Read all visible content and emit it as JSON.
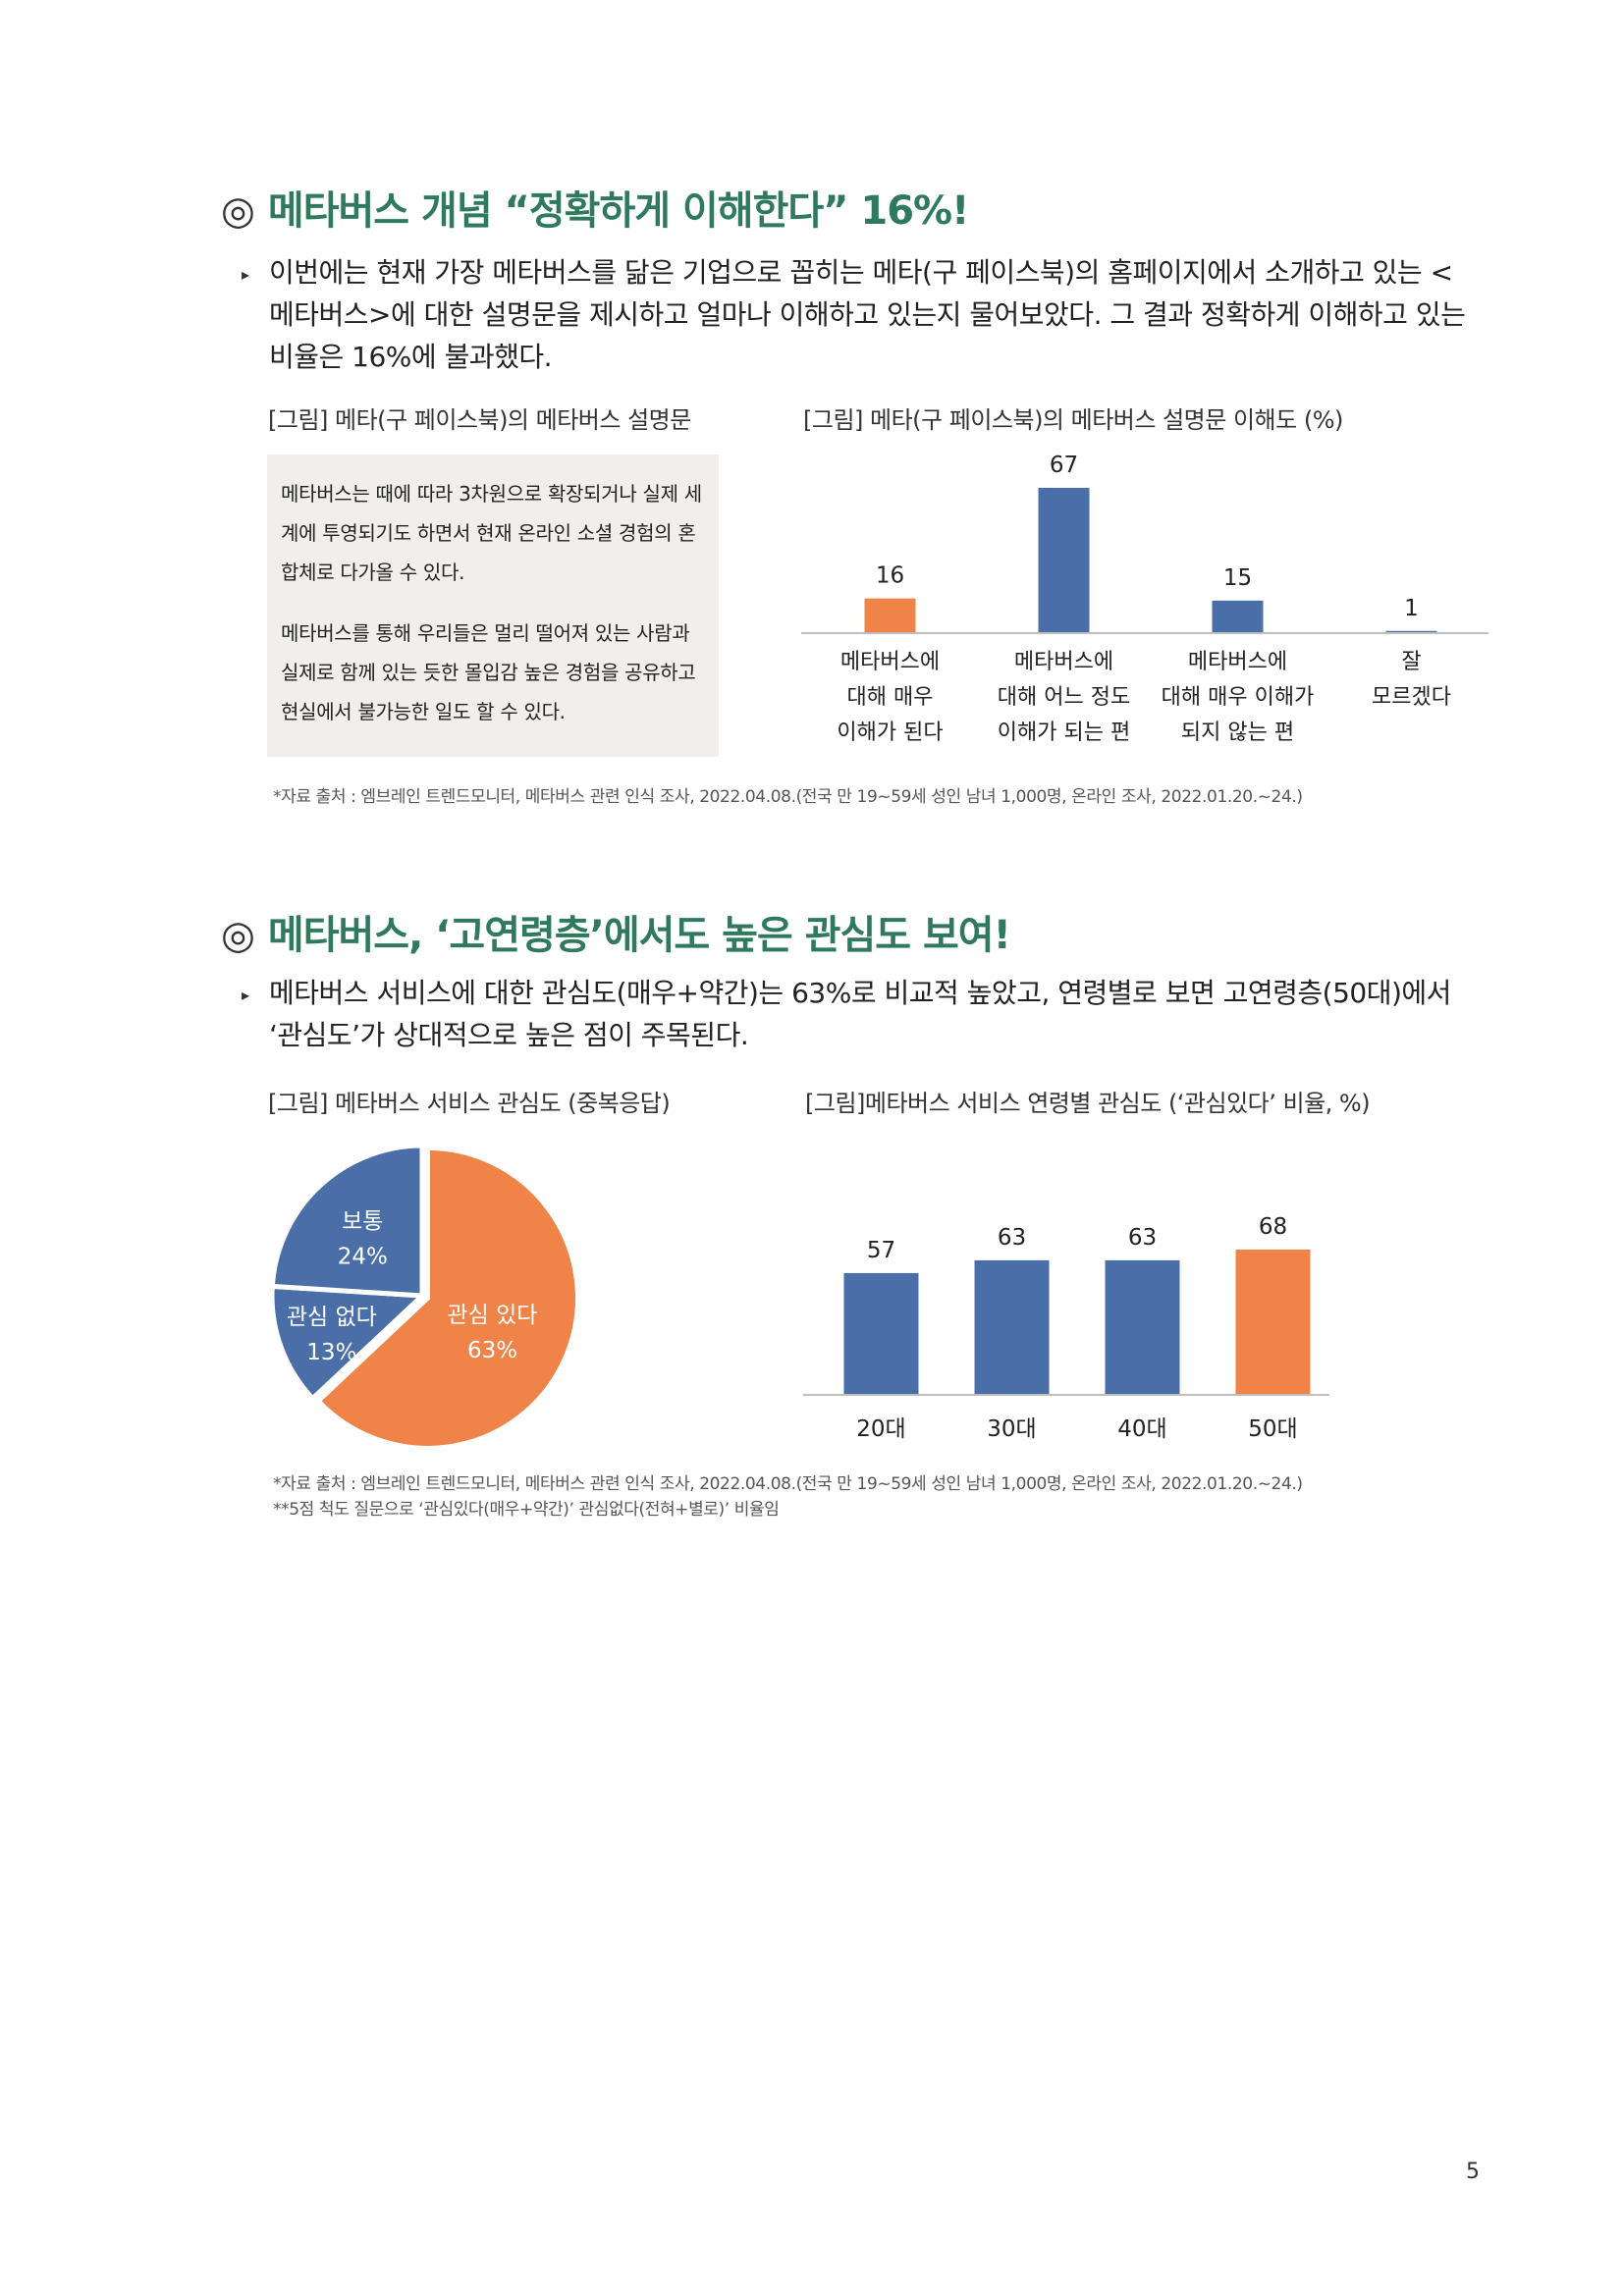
{
  "section1": {
    "mark": "◎",
    "title": "메타버스 개념 “정확하게 이해한다” 16%!",
    "body": "이번에는 현재 가장 메타버스를 닮은 기업으로 꼽히는 메타(구 페이스북)의 홈페이지에서 소개하고 있는 <메타버스>에 대한 설명문을 제시하고 얼마나 이해하고 있는지 물어보았다. 그 결과 정확하게 이해하고 있는 비율은 16%에 불과했다.",
    "figure_left_caption": "[그림] 메타(구 페이스북)의 메타버스 설명문",
    "quote_p1": "메타버스는 때에 따라 3차원으로 확장되거나 실제 세계에 투영되기도 하면서 현재 온라인 소셜 경험의 혼합체로 다가올 수 있다.",
    "quote_p2": "메타버스를 통해 우리들은 멀리 떨어져 있는 사람과 실제로 함께 있는 듯한 몰입감 높은 경험을 공유하고 현실에서 불가능한 일도 할 수 있다.",
    "figure_right_caption": "[그림] 메타(구 페이스북)의 메타버스 설명문 이해도 (%)",
    "source": "*자료 출처 : 엠브레인 트렌드모니터, 메타버스 관련 인식 조사, 2022.04.08.(전국 만 19~59세 성인 남녀 1,000명, 온라인 조사, 2022.01.20.~24.)"
  },
  "section2": {
    "mark": "◎",
    "title": "메타버스, ‘고연령층’에서도 높은 관심도 보여!",
    "body": "메타버스 서비스에 대한 관심도(매우+약간)는 63%로 비교적 높았고, 연령별로 보면 고연령층(50대)에서 ‘관심도’가 상대적으로 높은 점이 주목된다.",
    "figure_left_caption": "[그림] 메타버스 서비스 관심도 (중복응답)",
    "figure_right_caption": "[그림]메타버스 서비스 연령별 관심도 (‘관심있다’ 비율, %)",
    "source1": "*자료 출처 : 엠브레인 트렌드모니터, 메타버스 관련 인식 조사, 2022.04.08.(전국 만 19~59세 성인 남녀 1,000명, 온라인 조사, 2022.01.20.~24.)",
    "source2": "**5점 척도 질문으로 ‘관심있다(매우+약간)’ 관심없다(전혀+별로)’ 비율임"
  },
  "page_number": "5",
  "colors": {
    "blue": "#4a6fa8",
    "orange": "#f08448",
    "title_green": "#2f7a5e"
  },
  "chart_data": [
    {
      "type": "bar",
      "title": "[그림] 메타(구 페이스북)의 메타버스 설명문 이해도 (%)",
      "categories": [
        [
          "메타버스에",
          "대해 매우",
          "이해가 된다"
        ],
        [
          "메타버스에",
          "대해 어느 정도",
          "이해가 되는 편"
        ],
        [
          "메타버스에",
          "대해 매우 이해가",
          "되지 않는 편"
        ],
        [
          "잘",
          "모르겠다"
        ]
      ],
      "values": [
        16,
        67,
        15,
        1
      ],
      "value_labels": [
        "16",
        "67",
        "15",
        "1"
      ],
      "bar_colors": [
        "#f08448",
        "#4a6fa8",
        "#4a6fa8",
        "#4a6fa8"
      ],
      "ylim": [
        0,
        67
      ]
    },
    {
      "type": "pie",
      "title": "[그림] 메타버스 서비스 관심도 (중복응답)",
      "slices": [
        {
          "label": "관심 있다",
          "value": 63,
          "display": "63%",
          "color": "#f08448"
        },
        {
          "label": "관심 없다",
          "value": 13,
          "display": "13%",
          "color": "#4a6fa8"
        },
        {
          "label": "보통",
          "value": 24,
          "display": "24%",
          "color": "#4a6fa8"
        }
      ]
    },
    {
      "type": "bar",
      "title": "[그림]메타버스 서비스 연령별 관심도 (‘관심있다’ 비율, %)",
      "categories": [
        "20대",
        "30대",
        "40대",
        "50대"
      ],
      "values": [
        57,
        63,
        63,
        68
      ],
      "value_labels": [
        "57",
        "63",
        "63",
        "68"
      ],
      "bar_colors": [
        "#4a6fa8",
        "#4a6fa8",
        "#4a6fa8",
        "#f08448"
      ],
      "ylim": [
        0,
        68
      ]
    }
  ]
}
